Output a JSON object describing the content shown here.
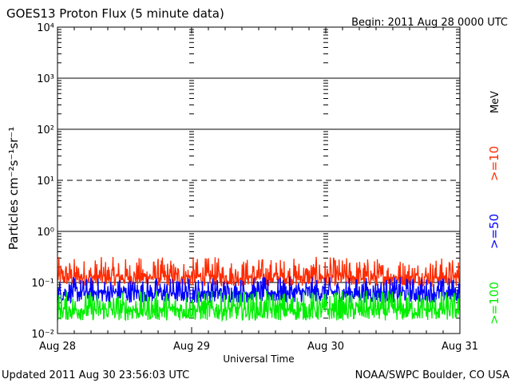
{
  "chart_data": {
    "type": "line",
    "title": "GOES13 Proton Flux (5 minute data)",
    "begin_label": "Begin: 2011 Aug 28 0000 UTC",
    "ylabel": "Particles cm⁻²s⁻¹sr⁻¹",
    "xlabel": "Universal Time",
    "y_scale": "log",
    "ylim": [
      0.01,
      10000
    ],
    "y_ticks": [
      {
        "value": 0.01,
        "label": "10⁻²"
      },
      {
        "value": 0.1,
        "label": "10⁻¹"
      },
      {
        "value": 1,
        "label": "10⁰"
      },
      {
        "value": 10,
        "label": "10¹"
      },
      {
        "value": 100,
        "label": "10²"
      },
      {
        "value": 1000,
        "label": "10³"
      },
      {
        "value": 10000,
        "label": "10⁴"
      }
    ],
    "x_ticks": [
      "Aug 28",
      "Aug 29",
      "Aug 30",
      "Aug 31"
    ],
    "xlim_days": [
      0,
      3
    ],
    "threshold_lines": [
      {
        "value": 1000,
        "style": "solid"
      },
      {
        "value": 100,
        "style": "solid"
      },
      {
        "value": 10,
        "style": "dashed"
      },
      {
        "value": 1,
        "style": "solid"
      },
      {
        "value": 0.1,
        "style": "solid"
      }
    ],
    "legend_unit": "MeV",
    "series": [
      {
        "name": ">=10",
        "color": "#ff2a00",
        "base": 0.13,
        "min": 0.085,
        "max": 0.32
      },
      {
        "name": ">=50",
        "color": "#0000ff",
        "base": 0.065,
        "min": 0.04,
        "max": 0.13
      },
      {
        "name": ">=100",
        "color": "#00ee00",
        "base": 0.03,
        "min": 0.018,
        "max": 0.07
      }
    ]
  },
  "footer": {
    "updated": "Updated 2011 Aug 30 23:56:03 UTC",
    "credit": "NOAA/SWPC Boulder, CO USA"
  }
}
